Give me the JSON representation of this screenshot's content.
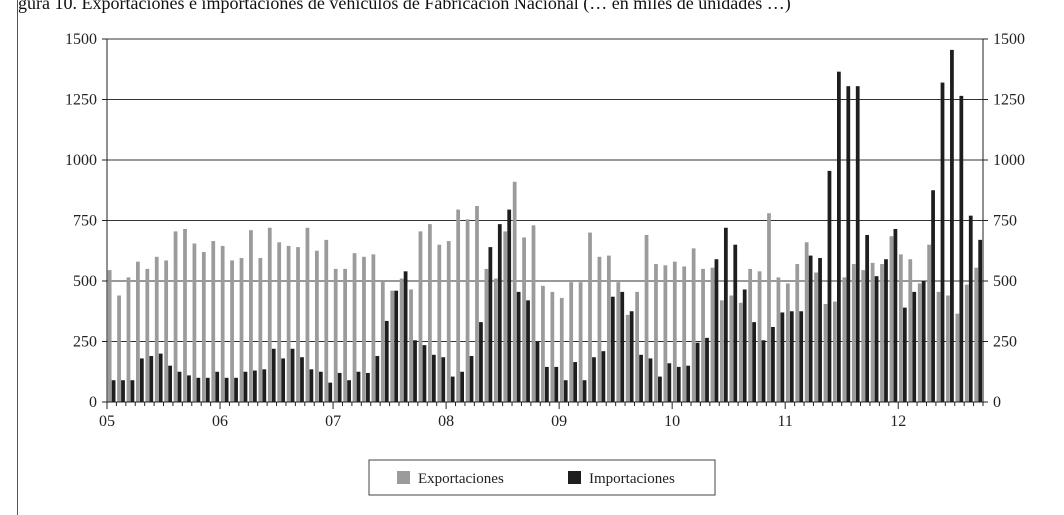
{
  "title_fragment": "gura 10. Exportaciones e importaciones de vehículos de Fabricación Nacional (… en miles de unidades …)",
  "colors": {
    "exports": "#9b9b9b",
    "imports": "#1e1e1e",
    "grid": "#333333",
    "axis": "#222222"
  },
  "chart_data": {
    "type": "bar",
    "title": "",
    "xlabel": "",
    "ylabel": "",
    "ylim": [
      0,
      1500
    ],
    "y_ticks": [
      "0",
      "250",
      "500",
      "750",
      "1000",
      "1250",
      "1500"
    ],
    "y_tick_values": [
      0,
      250,
      500,
      750,
      1000,
      1250,
      1500
    ],
    "secondary_y_axis": true,
    "x_tick_labels": [
      "05",
      "06",
      "07",
      "08",
      "09",
      "10",
      "11",
      "12"
    ],
    "grid": true,
    "legend_position": "bottom",
    "months_per_year": 12,
    "series": [
      {
        "name": "Exportaciones",
        "values": [
          545,
          440,
          515,
          580,
          550,
          600,
          585,
          705,
          715,
          655,
          620,
          665,
          645,
          585,
          595,
          710,
          595,
          720,
          660,
          645,
          640,
          720,
          625,
          670,
          550,
          550,
          615,
          600,
          610,
          500,
          460,
          510,
          465,
          705,
          735,
          650,
          665,
          795,
          755,
          810,
          550,
          510,
          705,
          910,
          680,
          730,
          480,
          455,
          430,
          495,
          495,
          700,
          600,
          605,
          495,
          360,
          455,
          690,
          570,
          565,
          580,
          560,
          635,
          550,
          555,
          420,
          440,
          410,
          550,
          540,
          780,
          515,
          490,
          570,
          660,
          535,
          405,
          415,
          515,
          570,
          545,
          575,
          570,
          685,
          610,
          590,
          490,
          650,
          455,
          440,
          365,
          485,
          555
        ]
      },
      {
        "name": "Importaciones",
        "values": [
          90,
          90,
          90,
          180,
          190,
          200,
          150,
          125,
          110,
          100,
          100,
          125,
          100,
          100,
          125,
          130,
          135,
          220,
          180,
          220,
          185,
          135,
          125,
          80,
          120,
          90,
          125,
          120,
          190,
          335,
          460,
          540,
          255,
          235,
          195,
          185,
          105,
          125,
          190,
          330,
          640,
          735,
          795,
          455,
          420,
          250,
          145,
          145,
          90,
          165,
          90,
          185,
          210,
          435,
          455,
          375,
          195,
          180,
          105,
          160,
          145,
          150,
          245,
          265,
          590,
          720,
          650,
          465,
          330,
          255,
          310,
          370,
          375,
          375,
          605,
          595,
          955,
          1365,
          1305,
          1305,
          690,
          520,
          590,
          715,
          390,
          455,
          500,
          875,
          1320,
          1455,
          1265,
          770,
          670
        ]
      }
    ]
  },
  "legend": {
    "items": [
      {
        "label": "Exportaciones",
        "color": "#9b9b9b"
      },
      {
        "label": "Importaciones",
        "color": "#1e1e1e"
      }
    ]
  }
}
